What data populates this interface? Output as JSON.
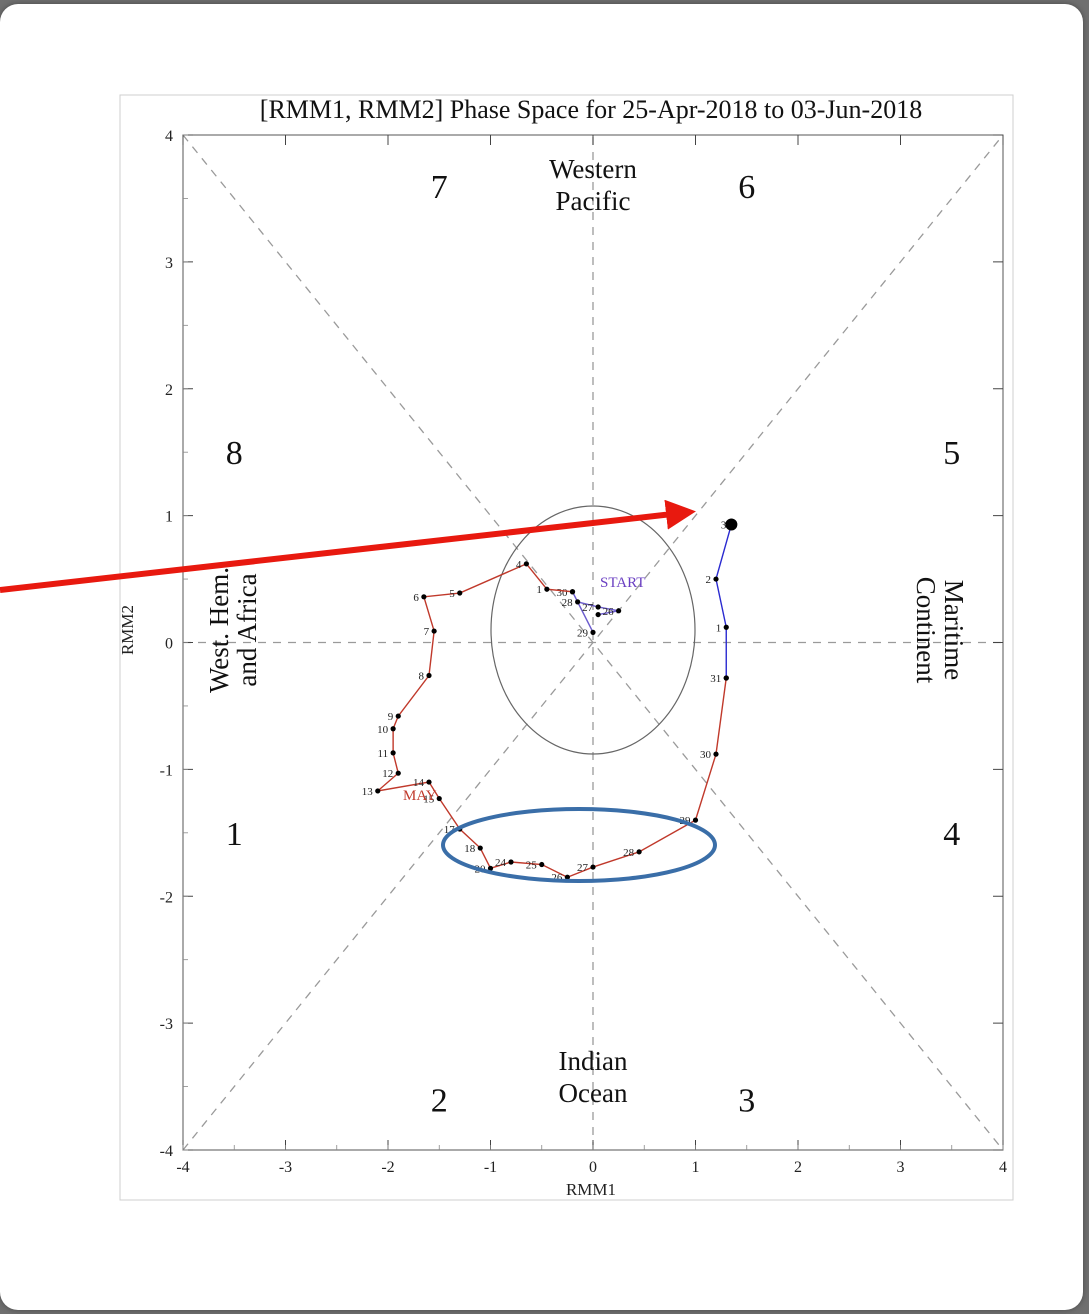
{
  "chart_data": {
    "type": "line",
    "title": "[RMM1, RMM2] Phase Space for 25-Apr-2018 to 03-Jun-2018",
    "xlabel": "RMM1",
    "ylabel": "RMM2",
    "xlim": [
      -4,
      4
    ],
    "ylim": [
      -4,
      4
    ],
    "x_ticks": [
      "-4",
      "-3",
      "-2",
      "-1",
      "0",
      "1",
      "2",
      "3",
      "4"
    ],
    "y_ticks": [
      "-4",
      "-3",
      "-2",
      "-1",
      "0",
      "1",
      "2",
      "3",
      "4"
    ],
    "phases": [
      {
        "label": "1",
        "x": -3.5,
        "y": -1.5
      },
      {
        "label": "2",
        "x": -1.5,
        "y": -3.6
      },
      {
        "label": "3",
        "x": 1.5,
        "y": -3.6
      },
      {
        "label": "4",
        "x": 3.5,
        "y": -1.5
      },
      {
        "label": "5",
        "x": 3.5,
        "y": 1.5
      },
      {
        "label": "6",
        "x": 1.5,
        "y": 3.6
      },
      {
        "label": "7",
        "x": -1.5,
        "y": 3.6
      },
      {
        "label": "8",
        "x": -3.5,
        "y": 1.5
      }
    ],
    "regions": {
      "top": [
        "Western",
        "Pacific"
      ],
      "bottom": [
        "Indian",
        "Ocean"
      ],
      "left": [
        "West. Hem.",
        "and Africa"
      ],
      "right": [
        "Maritime",
        "Continent"
      ]
    },
    "annotations": {
      "start": "START",
      "month": "MAY"
    },
    "series": [
      {
        "color": "#6a5acd",
        "points": [
          {
            "x": 0.05,
            "y": 0.22,
            "label": ""
          },
          {
            "x": 0.25,
            "y": 0.25,
            "label": "26"
          },
          {
            "x": 0.05,
            "y": 0.28,
            "label": "27"
          },
          {
            "x": -0.15,
            "y": 0.32,
            "label": "28"
          },
          {
            "x": 0.0,
            "y": 0.08,
            "label": "29"
          },
          {
            "x": -0.2,
            "y": 0.4,
            "label": "30"
          }
        ]
      },
      {
        "color": "#c0392b",
        "points": [
          {
            "x": -0.2,
            "y": 0.4,
            "label": ""
          },
          {
            "x": -0.45,
            "y": 0.42,
            "label": "1"
          },
          {
            "x": -0.65,
            "y": 0.62,
            "label": "4"
          },
          {
            "x": -1.3,
            "y": 0.39,
            "label": "5"
          },
          {
            "x": -1.65,
            "y": 0.36,
            "label": "6"
          },
          {
            "x": -1.55,
            "y": 0.09,
            "label": "7"
          },
          {
            "x": -1.6,
            "y": -0.26,
            "label": "8"
          },
          {
            "x": -1.9,
            "y": -0.58,
            "label": "9"
          },
          {
            "x": -1.95,
            "y": -0.68,
            "label": "10"
          },
          {
            "x": -1.95,
            "y": -0.87,
            "label": "11"
          },
          {
            "x": -1.9,
            "y": -1.03,
            "label": "12"
          },
          {
            "x": -2.1,
            "y": -1.17,
            "label": "13"
          },
          {
            "x": -1.6,
            "y": -1.1,
            "label": "14"
          },
          {
            "x": -1.5,
            "y": -1.23,
            "label": "15"
          },
          {
            "x": -1.3,
            "y": -1.47,
            "label": "17"
          },
          {
            "x": -1.1,
            "y": -1.62,
            "label": "18"
          },
          {
            "x": -1.0,
            "y": -1.78,
            "label": "20"
          },
          {
            "x": -0.8,
            "y": -1.73,
            "label": "24"
          },
          {
            "x": -0.5,
            "y": -1.75,
            "label": "25"
          },
          {
            "x": -0.25,
            "y": -1.85,
            "label": "26"
          },
          {
            "x": 0.0,
            "y": -1.77,
            "label": "27"
          },
          {
            "x": 0.45,
            "y": -1.65,
            "label": "28"
          },
          {
            "x": 1.0,
            "y": -1.4,
            "label": "29"
          },
          {
            "x": 1.2,
            "y": -0.88,
            "label": "30"
          },
          {
            "x": 1.3,
            "y": -0.28,
            "label": "31"
          }
        ]
      },
      {
        "color": "#2a2ad0",
        "points": [
          {
            "x": 1.3,
            "y": -0.28,
            "label": ""
          },
          {
            "x": 1.3,
            "y": 0.12,
            "label": "1"
          },
          {
            "x": 1.2,
            "y": 0.5,
            "label": "2"
          },
          {
            "x": 1.35,
            "y": 0.93,
            "label": "3"
          }
        ]
      }
    ]
  },
  "annotations_overlay": {
    "red_arrow": "pointing to the phase 5/6 boundary near the unit circle",
    "blue_ellipse": "highlighting trajectory in phases 2-3 around RMM2 = -1.7"
  }
}
